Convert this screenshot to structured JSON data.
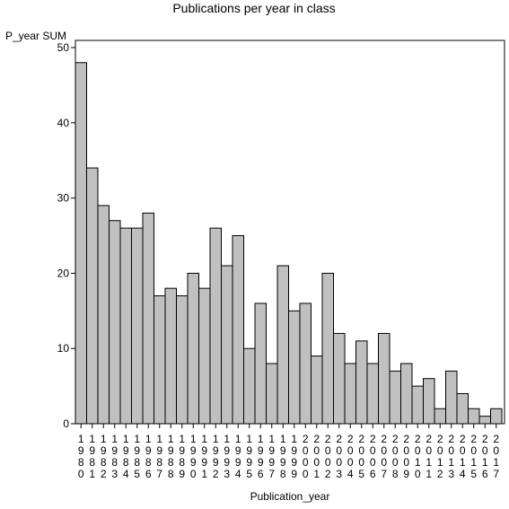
{
  "chart_data": {
    "type": "bar",
    "title": "Publications per year in class",
    "ylabel": "P_year SUM",
    "xlabel": "Publication_year",
    "ylim": [
      0,
      50
    ],
    "yticks": [
      0,
      10,
      20,
      30,
      40,
      50
    ],
    "grid": false,
    "colors": {
      "bar": "#c0c0c0",
      "stroke": "#000000"
    },
    "categories": [
      "1980",
      "1981",
      "1982",
      "1983",
      "1984",
      "1985",
      "1986",
      "1987",
      "1988",
      "1989",
      "1990",
      "1991",
      "1992",
      "1993",
      "1994",
      "1995",
      "1996",
      "1997",
      "1998",
      "1999",
      "2000",
      "2001",
      "2002",
      "2003",
      "2004",
      "2005",
      "2006",
      "2007",
      "2008",
      "2009",
      "2010",
      "2011",
      "2012",
      "2013",
      "2014",
      "2015",
      "2016",
      "2017"
    ],
    "values": [
      48,
      34,
      29,
      27,
      26,
      26,
      28,
      17,
      18,
      17,
      20,
      18,
      26,
      21,
      25,
      10,
      16,
      8,
      21,
      15,
      16,
      9,
      20,
      12,
      8,
      11,
      8,
      12,
      7,
      8,
      5,
      6,
      2,
      7,
      4,
      2,
      1,
      2
    ]
  }
}
